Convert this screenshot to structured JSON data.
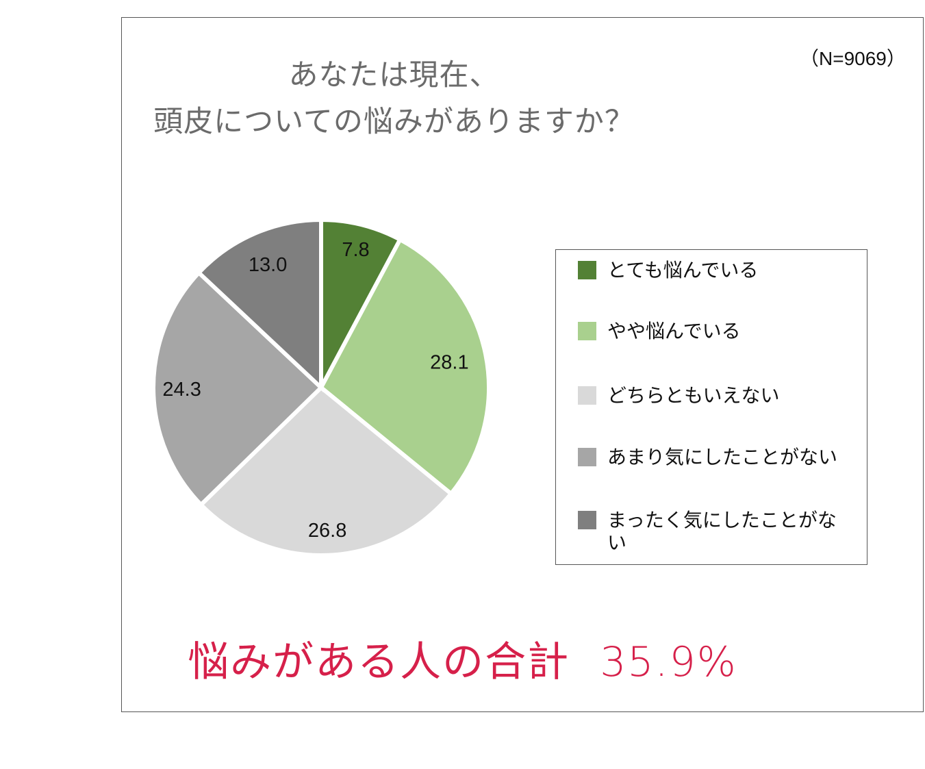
{
  "chart_data": {
    "type": "pie",
    "title_lines": [
      "あなたは現在、",
      "頭皮についての悩みがありますか？"
    ],
    "sample_size": "（N=9069）",
    "categories": [
      "とても悩んでいる",
      "やや悩んでいる",
      "どちらともいえない",
      "あまり気にしたことがない",
      "まったく気にしたことがない"
    ],
    "values": [
      7.8,
      28.1,
      26.8,
      24.3,
      13.0
    ],
    "value_labels": [
      "7.8",
      "28.1",
      "26.8",
      "24.3",
      "13.0"
    ],
    "colors": [
      "#538135",
      "#a9d08e",
      "#d9d9d9",
      "#a6a6a6",
      "#7f7f7f"
    ],
    "legend_placement": "right",
    "summary": {
      "label": "悩みがある人の合計",
      "value": "35.9%"
    }
  }
}
